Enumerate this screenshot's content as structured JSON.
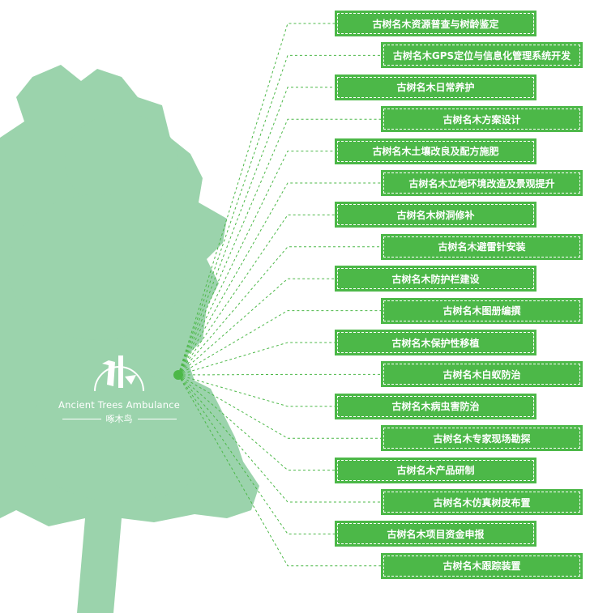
{
  "colors": {
    "tree": "#9bd3ac",
    "box": "#4cb848",
    "line": "#4cb848"
  },
  "logo": {
    "english": "Ancient Trees Ambulance",
    "chinese": "啄木鸟",
    "icon": "woodpecker-icon"
  },
  "items": [
    "古树名木资源普查与树龄鉴定",
    "古树名木GPS定位与信息化管理系统开发",
    "古树名木日常养护",
    "古树名木方案设计",
    "古树名木土壤改良及配方施肥",
    "古树名木立地环境改造及景观提升",
    "古树名木树洞修补",
    "古树名木避雷针安装",
    "古树名木防护栏建设",
    "古树名木图册编撰",
    "古树名木保护性移植",
    "古树名木白蚁防治",
    "古树名木病虫害防治",
    "古树名木专家现场勘探",
    "古树名木产品研制",
    "古树名木仿真树皮布置",
    "古树名木项目资金申报",
    "古树名木跟踪装置"
  ]
}
